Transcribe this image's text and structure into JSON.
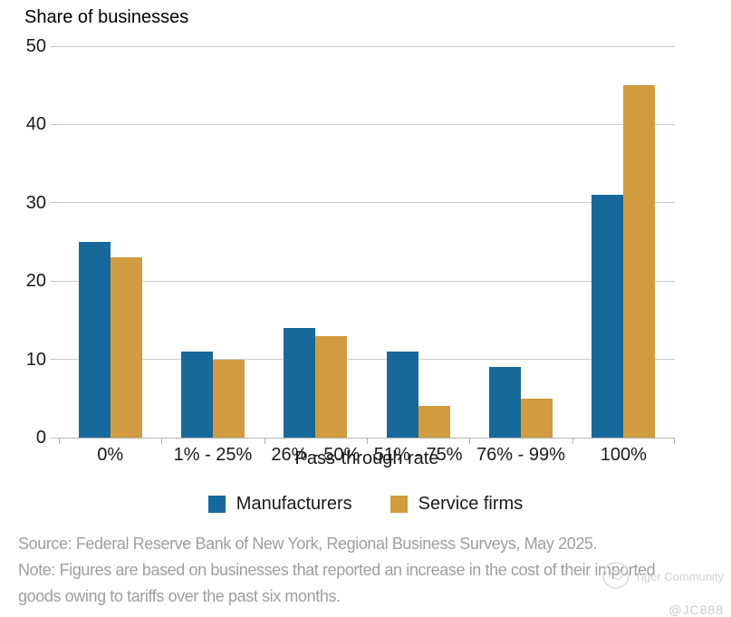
{
  "header": {
    "title": "Share of businesses"
  },
  "chart_data": {
    "type": "bar",
    "title": "Share of businesses",
    "categories": [
      "0%",
      "1% - 25%",
      "26% - 50%",
      "51% - 75%",
      "76% - 99%",
      "100%"
    ],
    "series": [
      {
        "name": "Manufacturers",
        "color": "#17699B",
        "values": [
          25,
          11,
          14,
          11,
          9,
          31
        ]
      },
      {
        "name": "Service firms",
        "color": "#D09C3F",
        "values": [
          23,
          10,
          13,
          4,
          5,
          45
        ]
      }
    ],
    "xlabel": "Pass-through rate",
    "ylabel": "Share of businesses",
    "ylim": [
      0,
      50
    ],
    "ytick_step": 10,
    "grid": true,
    "legend_position": "bottom"
  },
  "footer": {
    "source": "Source: Federal Reserve Bank of New York, Regional Business Surveys, May 2025.",
    "note_line1": "Note: Figures are based on businesses that reported an increase in the cost of their imported",
    "note_line2": "goods owing to tariffs over the past six months."
  },
  "watermark": {
    "community": "Tiger Community",
    "handle": "@JC888"
  }
}
